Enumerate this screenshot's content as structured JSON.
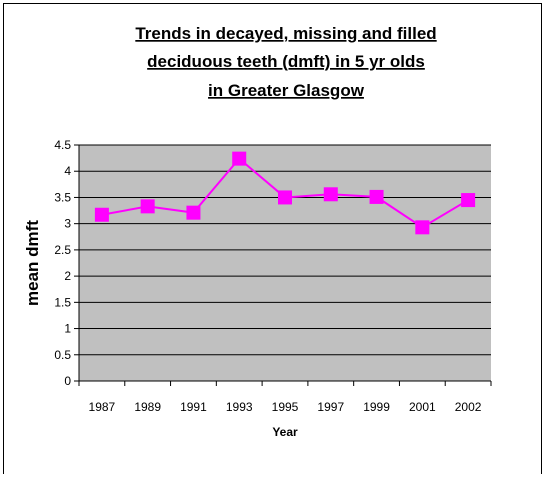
{
  "chart_data": {
    "type": "line",
    "title_lines": [
      "Trends in decayed, missing and filled",
      "deciduous teeth (dmft) in 5 yr olds",
      "in Greater Glasgow"
    ],
    "xlabel": "Year",
    "ylabel": "mean dmft",
    "categories": [
      "1987",
      "1989",
      "1991",
      "1993",
      "1995",
      "1997",
      "1999",
      "2001",
      "2002"
    ],
    "series": [
      {
        "values": [
          3.17,
          3.33,
          3.21,
          4.24,
          3.5,
          3.56,
          3.51,
          2.93,
          3.45
        ]
      }
    ],
    "ylim": [
      0,
      4.5
    ],
    "yticks": [
      "0",
      "0.5",
      "1",
      "1.5",
      "2",
      "2.5",
      "3",
      "3.5",
      "4",
      "4.5"
    ],
    "grid": true,
    "legend": "none",
    "colors": {
      "line": "#ff00ff",
      "marker": "#ff00ff",
      "plot_background": "#c0c0c0",
      "gridline": "#000000"
    }
  }
}
